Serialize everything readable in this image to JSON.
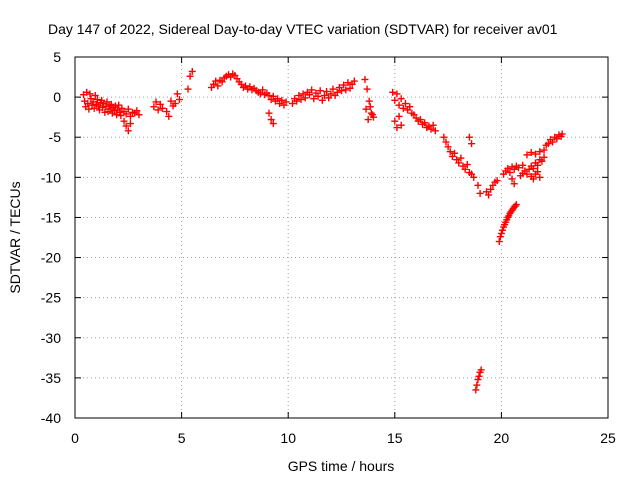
{
  "chart_data": {
    "type": "scatter",
    "title": "Day 147 of 2022, Sidereal Day-to-day VTEC variation (SDTVAR) for receiver av01",
    "xlabel": "GPS time / hours",
    "ylabel": "SDTVAR / TECUs",
    "xlim": [
      0,
      25
    ],
    "ylim": [
      -40,
      5
    ],
    "xticks": [
      0,
      5,
      10,
      15,
      20,
      25
    ],
    "yticks": [
      5,
      0,
      -5,
      -10,
      -15,
      -20,
      -25,
      -30,
      -35,
      -40
    ],
    "grid": true,
    "marker": "+",
    "marker_color": "#ff0000",
    "series": [
      {
        "name": "av01",
        "x": [
          0.4,
          0.45,
          0.5,
          0.55,
          0.6,
          0.65,
          0.7,
          0.75,
          0.8,
          0.85,
          0.9,
          0.95,
          1.0,
          1.05,
          1.1,
          1.15,
          1.2,
          1.25,
          1.3,
          1.35,
          1.4,
          1.45,
          1.5,
          1.55,
          1.6,
          1.65,
          1.7,
          1.75,
          1.8,
          1.85,
          1.9,
          1.95,
          2.0,
          2.05,
          2.1,
          2.15,
          2.2,
          2.3,
          2.4,
          2.5,
          2.6,
          2.7,
          2.8,
          2.9,
          3.0,
          2.3,
          2.4,
          2.5,
          2.6,
          3.7,
          3.8,
          3.9,
          4.0,
          4.1,
          4.3,
          4.4,
          4.5,
          4.6,
          4.7,
          4.8,
          4.9,
          5.3,
          5.4,
          5.5,
          6.4,
          6.5,
          6.6,
          6.7,
          6.8,
          6.9,
          7.0,
          7.1,
          7.2,
          7.3,
          7.4,
          7.5,
          7.6,
          7.7,
          7.8,
          7.9,
          8.0,
          8.1,
          8.2,
          8.3,
          8.4,
          8.5,
          8.6,
          8.7,
          8.8,
          8.9,
          9.0,
          9.1,
          9.2,
          9.3,
          9.4,
          9.5,
          9.6,
          9.7,
          9.8,
          9.9,
          9.1,
          9.2,
          9.3,
          10.2,
          10.3,
          10.4,
          10.5,
          10.6,
          10.7,
          10.8,
          10.9,
          11.0,
          11.1,
          11.2,
          11.3,
          11.4,
          11.5,
          11.6,
          11.7,
          11.8,
          11.9,
          12.0,
          12.1,
          12.2,
          12.3,
          12.4,
          12.5,
          12.6,
          12.7,
          12.8,
          12.9,
          13.0,
          13.1,
          13.6,
          13.7,
          13.8,
          13.9,
          14.0,
          13.65,
          13.75,
          13.85,
          13.95,
          14.9,
          15.0,
          15.1,
          15.2,
          15.3,
          15.4,
          15.5,
          15.6,
          15.7,
          15.8,
          15.0,
          15.1,
          15.2,
          15.3,
          15.9,
          16.0,
          16.1,
          16.2,
          16.3,
          16.4,
          16.5,
          16.6,
          16.7,
          16.8,
          16.9,
          17.3,
          17.4,
          17.5,
          17.6,
          17.7,
          17.8,
          17.9,
          18.0,
          18.1,
          18.2,
          18.3,
          18.4,
          18.5,
          18.6,
          18.7,
          18.5,
          18.6,
          18.8,
          18.85,
          18.9,
          18.95,
          19.0,
          19.05,
          18.9,
          19.0,
          19.3,
          19.4,
          19.5,
          19.6,
          19.7,
          19.8,
          19.9,
          19.95,
          20.0,
          20.05,
          20.1,
          20.15,
          20.2,
          20.25,
          20.3,
          20.35,
          20.4,
          20.45,
          20.5,
          20.55,
          20.6,
          20.65,
          20.7,
          20.1,
          20.2,
          20.3,
          20.4,
          20.5,
          20.6,
          20.7,
          20.8,
          20.9,
          21.0,
          21.1,
          21.2,
          21.3,
          21.4,
          21.5,
          21.6,
          21.7,
          21.8,
          21.9,
          21.4,
          21.5,
          21.6,
          21.7,
          21.8,
          20.5,
          20.6,
          21.0,
          21.2,
          21.4,
          21.6,
          21.8,
          22.0,
          22.0,
          22.1,
          22.2,
          22.3,
          22.4,
          22.5,
          22.6,
          22.7,
          22.8,
          22.85
        ],
        "y": [
          0.3,
          -0.5,
          -1.2,
          0.6,
          -0.8,
          -1.5,
          0.4,
          -0.2,
          -1.0,
          -0.6,
          -1.4,
          0.2,
          -0.9,
          -0.3,
          -1.1,
          -1.6,
          -0.7,
          -0.4,
          -1.3,
          -0.8,
          -1.9,
          -1.2,
          -0.6,
          -1.8,
          -1.0,
          -1.5,
          -0.9,
          -2.0,
          -1.3,
          -1.7,
          -1.1,
          -2.2,
          -1.6,
          -1.0,
          -1.9,
          -2.3,
          -1.4,
          -1.8,
          -2.1,
          -1.5,
          -2.4,
          -1.9,
          -2.0,
          -1.7,
          -2.2,
          -3.0,
          -3.6,
          -4.2,
          -3.3,
          -1.2,
          -0.6,
          -1.6,
          -0.9,
          -1.4,
          -1.8,
          -2.4,
          -0.5,
          -1.1,
          -0.8,
          0.4,
          -0.3,
          1.0,
          2.6,
          3.2,
          1.2,
          1.6,
          2.0,
          1.4,
          2.1,
          1.9,
          2.4,
          2.6,
          2.8,
          2.5,
          2.9,
          2.7,
          2.3,
          1.9,
          1.6,
          1.2,
          1.4,
          1.0,
          1.3,
          0.9,
          1.1,
          0.8,
          0.6,
          0.4,
          0.9,
          0.3,
          0.5,
          0.2,
          -0.3,
          0.1,
          -0.5,
          -0.2,
          -0.8,
          -0.4,
          -1.0,
          -0.6,
          -2.0,
          -2.8,
          -3.3,
          -0.8,
          -0.2,
          -0.5,
          0.2,
          -0.3,
          0.4,
          -0.1,
          0.6,
          0.3,
          0.9,
          -0.2,
          0.5,
          0.1,
          0.8,
          -0.4,
          0.2,
          0.7,
          -0.1,
          0.4,
          1.0,
          0.2,
          0.6,
          1.2,
          0.8,
          1.5,
          0.9,
          1.8,
          1.1,
          1.6,
          2.0,
          2.2,
          1.0,
          -0.5,
          -2.0,
          -2.5,
          -1.5,
          -2.8,
          -1.2,
          -2.2,
          0.6,
          -0.4,
          0.4,
          -1.0,
          -0.2,
          -1.4,
          -0.8,
          -1.6,
          -1.2,
          -2.0,
          -3.0,
          -3.8,
          -2.4,
          -3.5,
          -2.2,
          -2.6,
          -3.0,
          -2.8,
          -3.4,
          -3.2,
          -3.8,
          -3.6,
          -4.0,
          -3.5,
          -4.2,
          -5.0,
          -5.6,
          -6.2,
          -6.8,
          -7.4,
          -7.0,
          -7.8,
          -8.2,
          -7.6,
          -8.6,
          -9.0,
          -8.4,
          -9.4,
          -9.6,
          -10.0,
          -5.0,
          -5.8,
          -36.5,
          -35.9,
          -35.2,
          -34.8,
          -34.3,
          -34.0,
          -11.0,
          -12.0,
          -11.8,
          -12.2,
          -11.5,
          -11.0,
          -10.6,
          -10.4,
          -18.0,
          -17.4,
          -17.0,
          -16.6,
          -16.2,
          -15.9,
          -15.6,
          -15.3,
          -15.0,
          -14.8,
          -14.5,
          -14.3,
          -14.1,
          -13.9,
          -13.7,
          -13.6,
          -13.4,
          -9.6,
          -9.2,
          -8.9,
          -9.4,
          -8.7,
          -9.0,
          -8.6,
          -8.8,
          -9.8,
          -9.5,
          -9.2,
          -9.6,
          -9.0,
          -8.6,
          -8.9,
          -8.2,
          -8.5,
          -7.8,
          -8.0,
          -9.9,
          -10.2,
          -9.6,
          -9.3,
          -10.0,
          -10.2,
          -10.8,
          -8.5,
          -7.2,
          -6.9,
          -7.1,
          -6.8,
          -7.5,
          -6.6,
          -6.0,
          -5.8,
          -5.3,
          -5.6,
          -5.0,
          -5.2,
          -4.7,
          -4.9,
          -4.6
        ]
      }
    ]
  }
}
